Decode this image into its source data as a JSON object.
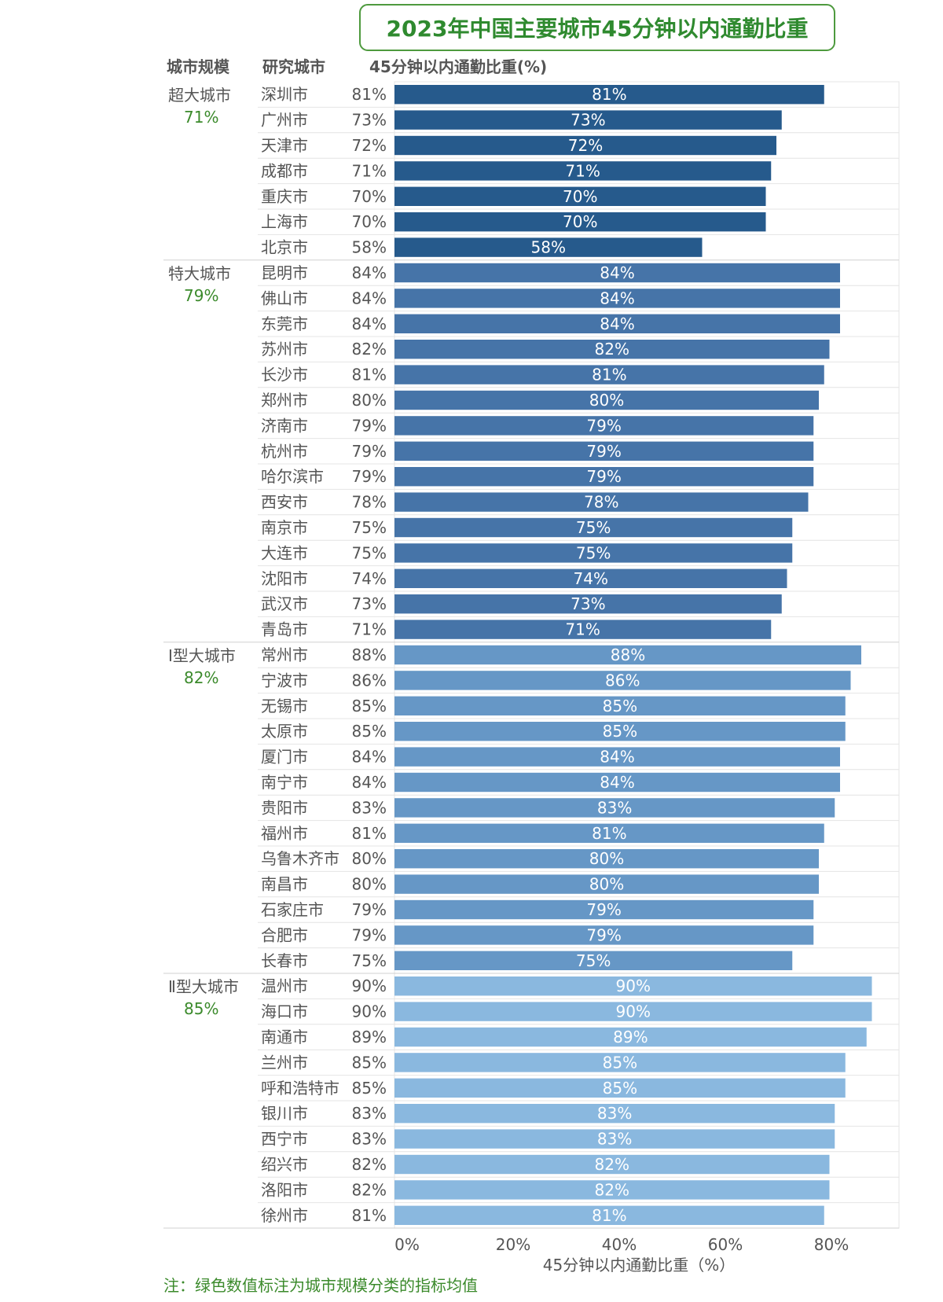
{
  "chart_data": {
    "type": "bar",
    "orientation": "horizontal",
    "title": "2023年中国主要城市45分钟以内通勤比重",
    "headers": {
      "group": "城市规模",
      "city": "研究城市",
      "value": "45分钟以内通勤比重(%)"
    },
    "xlabel": "45分钟以内通勤比重（%）",
    "xlim": [
      0,
      90
    ],
    "x_ticks": [
      "0%",
      "20%",
      "40%",
      "60%",
      "80%"
    ],
    "x_tick_values": [
      0,
      20,
      40,
      60,
      80
    ],
    "value_suffix": "%",
    "groups": [
      {
        "name": "超大城市",
        "average": "71%",
        "color": "#265a8c",
        "cities": [
          "深圳市",
          "广州市",
          "天津市",
          "成都市",
          "重庆市",
          "上海市",
          "北京市"
        ],
        "values": [
          81,
          73,
          72,
          71,
          70,
          70,
          58
        ]
      },
      {
        "name": "特大城市",
        "average": "79%",
        "color": "#4674a8",
        "cities": [
          "昆明市",
          "佛山市",
          "东莞市",
          "苏州市",
          "长沙市",
          "郑州市",
          "济南市",
          "杭州市",
          "哈尔滨市",
          "西安市",
          "南京市",
          "大连市",
          "沈阳市",
          "武汉市",
          "青岛市"
        ],
        "values": [
          84,
          84,
          84,
          82,
          81,
          80,
          79,
          79,
          79,
          78,
          75,
          75,
          74,
          73,
          71
        ]
      },
      {
        "name": "Ⅰ型大城市",
        "average": "82%",
        "color": "#6697c6",
        "cities": [
          "常州市",
          "宁波市",
          "无锡市",
          "太原市",
          "厦门市",
          "南宁市",
          "贵阳市",
          "福州市",
          "乌鲁木齐市",
          "南昌市",
          "石家庄市",
          "合肥市",
          "长春市"
        ],
        "values": [
          88,
          86,
          85,
          85,
          84,
          84,
          83,
          81,
          80,
          80,
          79,
          79,
          75
        ]
      },
      {
        "name": "Ⅱ型大城市",
        "average": "85%",
        "color": "#8ab8df",
        "cities": [
          "温州市",
          "海口市",
          "南通市",
          "兰州市",
          "呼和浩特市",
          "银川市",
          "西宁市",
          "绍兴市",
          "洛阳市",
          "徐州市"
        ],
        "values": [
          90,
          90,
          89,
          85,
          85,
          83,
          83,
          82,
          82,
          81
        ]
      }
    ],
    "note": "注：绿色数值标注为城市规模分类的指标均值",
    "colors": {
      "title_text": "#2f8a2f",
      "title_border": "#4e9a3e",
      "average_text": "#3b8a2b",
      "bar_label": "#ffffff"
    }
  }
}
